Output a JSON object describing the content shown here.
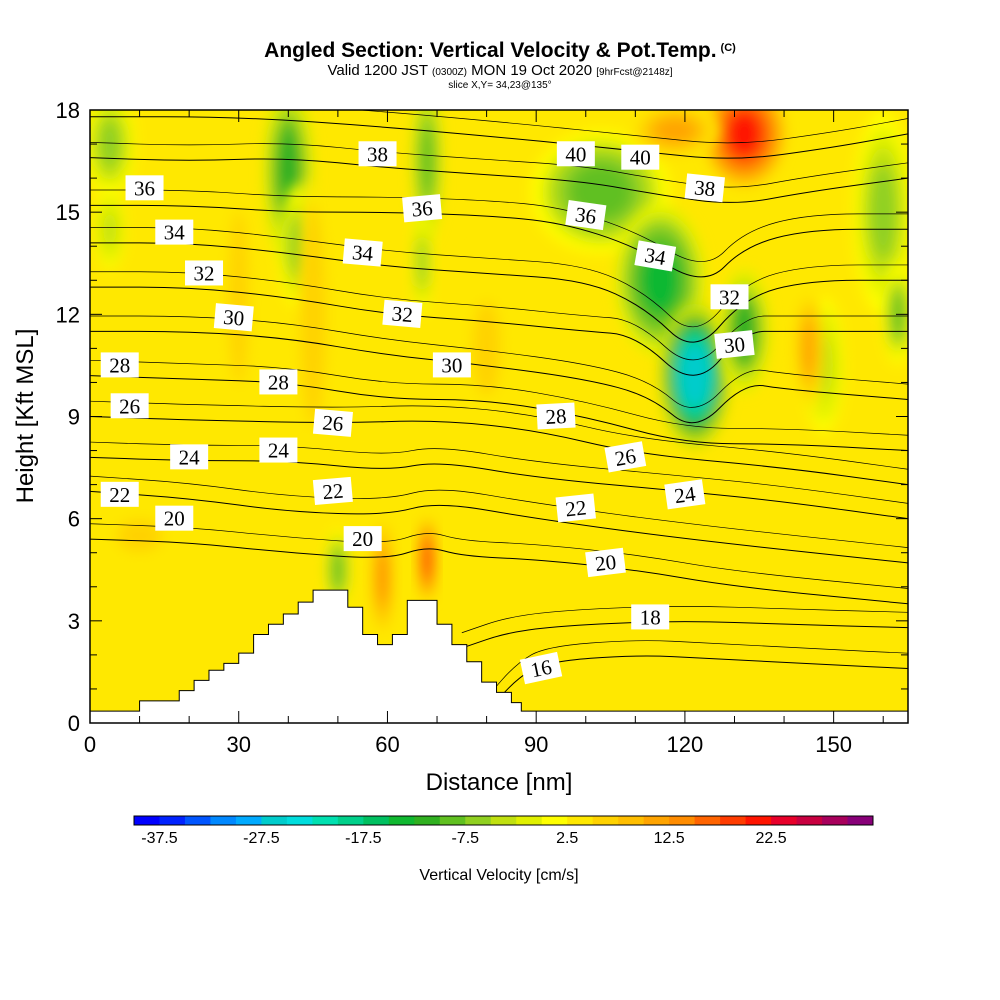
{
  "title": "Angled Section: Vertical Velocity & Pot.Temp.",
  "title_suffix": "(C)",
  "subtitle_valid": "Valid 1200 JST",
  "subtitle_z": "(0300Z)",
  "subtitle_date": "MON 19 Oct 2020",
  "subtitle_fcst": "[9hrFcst@2148z]",
  "slice_label": "slice X,Y= 34,23@135°",
  "chart_data": {
    "type": "heatmap",
    "title": "Angled Section: Vertical Velocity & Pot.Temp.",
    "xlabel": "Distance [nm]",
    "ylabel": "Height [Kft MSL]",
    "xlim": [
      0,
      165
    ],
    "ylim": [
      0,
      18
    ],
    "x_ticks": [
      "0",
      "30",
      "60",
      "90",
      "120",
      "150"
    ],
    "x_tick_values": [
      0,
      30,
      60,
      90,
      120,
      150
    ],
    "y_ticks": [
      "0",
      "3",
      "6",
      "9",
      "12",
      "15",
      "18"
    ],
    "y_tick_values": [
      0,
      3,
      6,
      9,
      12,
      15,
      18
    ],
    "colorbar": {
      "label": "Vertical Velocity [cm/s]",
      "tick_labels": [
        "-37.5",
        "-27.5",
        "-17.5",
        "-7.5",
        "2.5",
        "12.5",
        "22.5"
      ],
      "bins": [
        -40,
        -37.5,
        -35,
        -32.5,
        -30,
        -27.5,
        -25,
        -22.5,
        -20,
        -17.5,
        -15,
        -12.5,
        -10,
        -7.5,
        -5,
        -2.5,
        0,
        2.5,
        5,
        7.5,
        10,
        12.5,
        15,
        17.5,
        20,
        22.5,
        25,
        27.5,
        30,
        32.5
      ],
      "colors": [
        "#0000ff",
        "#0022ff",
        "#0055ff",
        "#0088ff",
        "#00aaff",
        "#00cccc",
        "#00dddd",
        "#00e0b0",
        "#00d08a",
        "#00c060",
        "#10b830",
        "#30b020",
        "#60c020",
        "#90d020",
        "#c0e010",
        "#e0f000",
        "#ffff00",
        "#ffe800",
        "#ffd200",
        "#ffbe00",
        "#ffa400",
        "#ff8c00",
        "#ff6400",
        "#ff3c00",
        "#ff1400",
        "#e8002a",
        "#c80040",
        "#a8005c",
        "#880078"
      ]
    },
    "features": [
      {
        "x": 40,
        "y": 16.2,
        "rx": 5,
        "ry": 2.6,
        "w": -12
      },
      {
        "x": 42,
        "y": 14.0,
        "rx": 4,
        "ry": 1.8,
        "w": -6
      },
      {
        "x": 68,
        "y": 16.5,
        "rx": 3,
        "ry": 2.3,
        "w": -10
      },
      {
        "x": 67,
        "y": 13.5,
        "rx": 2,
        "ry": 1.5,
        "w": -6
      },
      {
        "x": 4,
        "y": 17.0,
        "rx": 5,
        "ry": 1.6,
        "w": -7
      },
      {
        "x": 4,
        "y": 14.5,
        "rx": 3,
        "ry": 1.2,
        "w": -4
      },
      {
        "x": 103,
        "y": 15.6,
        "rx": 14,
        "ry": 1.8,
        "w": -9
      },
      {
        "x": 115,
        "y": 13.0,
        "rx": 9,
        "ry": 2.2,
        "w": -14
      },
      {
        "x": 122,
        "y": 10.2,
        "rx": 7,
        "ry": 2.1,
        "w": -26
      },
      {
        "x": 132,
        "y": 11.5,
        "rx": 5,
        "ry": 1.8,
        "w": -12
      },
      {
        "x": 160,
        "y": 15.0,
        "rx": 6,
        "ry": 3.0,
        "w": -6
      },
      {
        "x": 163,
        "y": 12.0,
        "rx": 3,
        "ry": 1.5,
        "w": -8
      },
      {
        "x": 148,
        "y": 10.5,
        "rx": 4,
        "ry": 2.0,
        "w": -4
      },
      {
        "x": 50,
        "y": 4.5,
        "rx": 2.5,
        "ry": 1.2,
        "w": -9
      },
      {
        "x": 132,
        "y": 17.3,
        "rx": 8,
        "ry": 1.5,
        "w": 22
      },
      {
        "x": 118,
        "y": 17.4,
        "rx": 9,
        "ry": 0.8,
        "w": 10
      },
      {
        "x": 68,
        "y": 4.8,
        "rx": 1.6,
        "ry": 1.2,
        "w": 22
      },
      {
        "x": 59,
        "y": 4.3,
        "rx": 2,
        "ry": 1.6,
        "w": 14
      },
      {
        "x": 45,
        "y": 12.0,
        "rx": 3,
        "ry": 4.0,
        "w": 7
      },
      {
        "x": 30,
        "y": 12.5,
        "rx": 3,
        "ry": 4.0,
        "w": 6
      },
      {
        "x": 145,
        "y": 11.0,
        "rx": 3,
        "ry": 1.8,
        "w": 10
      },
      {
        "x": 10,
        "y": 5.5,
        "rx": 10,
        "ry": 1.0,
        "w": 5
      },
      {
        "x": 80,
        "y": 11.0,
        "rx": 6,
        "ry": 3.0,
        "w": 5
      },
      {
        "x": 130,
        "y": 6.0,
        "rx": 25,
        "ry": 1.5,
        "w": 4
      },
      {
        "x": 55,
        "y": 9.5,
        "rx": 5,
        "ry": 2.0,
        "w": 4
      }
    ],
    "isentropes": [
      {
        "value": "16",
        "label": "16",
        "pts": [
          [
            80,
            0.3
          ],
          [
            86,
            1.3
          ],
          [
            92,
            1.8
          ],
          [
            110,
            2.0
          ],
          [
            125,
            1.9
          ],
          [
            150,
            1.7
          ],
          [
            165,
            1.6
          ]
        ],
        "label_at": [
          91,
          1.6
        ],
        "angle": -12
      },
      {
        "value": "18",
        "label": "18",
        "pts": [
          [
            75,
            2.2
          ],
          [
            85,
            2.7
          ],
          [
            100,
            2.9
          ],
          [
            120,
            3.0
          ],
          [
            140,
            2.9
          ],
          [
            165,
            2.8
          ]
        ],
        "label_at": [
          113,
          3.1
        ],
        "angle": 0
      },
      {
        "value": "20",
        "label": "20",
        "pts": [
          [
            0,
            5.4
          ],
          [
            20,
            5.3
          ],
          [
            40,
            5.0
          ],
          [
            60,
            4.8
          ],
          [
            68,
            5.2
          ],
          [
            75,
            4.9
          ],
          [
            90,
            4.8
          ],
          [
            110,
            4.5
          ],
          [
            130,
            4.0
          ],
          [
            165,
            3.5
          ]
        ],
        "label_at": [
          104,
          4.7
        ],
        "angle": -7
      },
      {
        "value": "22",
        "label": "22",
        "pts": [
          [
            0,
            6.8
          ],
          [
            20,
            6.6
          ],
          [
            40,
            6.2
          ],
          [
            60,
            6.1
          ],
          [
            70,
            6.5
          ],
          [
            90,
            6.0
          ],
          [
            120,
            5.4
          ],
          [
            165,
            4.7
          ]
        ],
        "label_at": [
          98,
          6.3
        ],
        "angle": -6
      },
      {
        "value": "24",
        "label": "24",
        "pts": [
          [
            0,
            7.8
          ],
          [
            20,
            7.7
          ],
          [
            40,
            7.7
          ],
          [
            60,
            7.4
          ],
          [
            70,
            7.7
          ],
          [
            90,
            7.2
          ],
          [
            120,
            6.8
          ],
          [
            140,
            6.5
          ],
          [
            165,
            6.0
          ]
        ],
        "label_at": [
          120,
          6.7
        ],
        "angle": -8
      },
      {
        "value": "26",
        "label": "26",
        "pts": [
          [
            0,
            9.0
          ],
          [
            20,
            8.9
          ],
          [
            50,
            8.8
          ],
          [
            70,
            8.9
          ],
          [
            90,
            8.6
          ],
          [
            110,
            7.9
          ],
          [
            140,
            7.5
          ],
          [
            165,
            7.0
          ]
        ],
        "label_at": [
          108,
          7.8
        ],
        "angle": -10
      },
      {
        "value": "28",
        "label": "28",
        "pts": [
          [
            0,
            10.2
          ],
          [
            20,
            10.1
          ],
          [
            40,
            10.0
          ],
          [
            60,
            9.5
          ],
          [
            80,
            9.5
          ],
          [
            100,
            9.0
          ],
          [
            120,
            8.2
          ],
          [
            140,
            8.2
          ],
          [
            165,
            8.0
          ]
        ],
        "label_at": [
          94,
          9.0
        ],
        "angle": -3
      },
      {
        "value": "30",
        "label": "30",
        "pts": [
          [
            0,
            11.5
          ],
          [
            20,
            11.5
          ],
          [
            40,
            11.3
          ],
          [
            60,
            10.8
          ],
          [
            80,
            10.5
          ],
          [
            100,
            10.1
          ],
          [
            113,
            9.6
          ],
          [
            122,
            8.5
          ],
          [
            132,
            10.0
          ],
          [
            140,
            9.8
          ],
          [
            165,
            9.5
          ]
        ],
        "label_at": [
          130,
          11.1
        ],
        "angle": -6
      },
      {
        "value": "32",
        "label": "32",
        "pts": [
          [
            0,
            12.8
          ],
          [
            20,
            12.8
          ],
          [
            40,
            12.5
          ],
          [
            60,
            12.0
          ],
          [
            80,
            11.8
          ],
          [
            100,
            11.5
          ],
          [
            110,
            11.4
          ],
          [
            122,
            9.8
          ],
          [
            132,
            11.5
          ],
          [
            140,
            11.5
          ],
          [
            165,
            11.5
          ]
        ],
        "label_at": [
          129,
          12.5
        ],
        "angle": 0
      },
      {
        "value": "34",
        "label": "34",
        "pts": [
          [
            0,
            14.1
          ],
          [
            20,
            14.1
          ],
          [
            40,
            13.8
          ],
          [
            60,
            13.4
          ],
          [
            80,
            13.2
          ],
          [
            100,
            13.0
          ],
          [
            112,
            12.2
          ],
          [
            122,
            10.8
          ],
          [
            132,
            12.5
          ],
          [
            145,
            13.0
          ],
          [
            165,
            13.0
          ]
        ],
        "label_at": [
          114,
          13.7
        ],
        "angle": 10
      },
      {
        "value": "36",
        "label": "36",
        "pts": [
          [
            0,
            15.2
          ],
          [
            20,
            15.2
          ],
          [
            40,
            15.0
          ],
          [
            60,
            15.0
          ],
          [
            80,
            14.9
          ],
          [
            95,
            14.7
          ],
          [
            110,
            14.0
          ],
          [
            124,
            12.8
          ],
          [
            132,
            14.0
          ],
          [
            145,
            14.5
          ],
          [
            165,
            14.5
          ]
        ],
        "label_at": [
          100,
          14.9
        ],
        "angle": 8
      },
      {
        "value": "38",
        "label": "38",
        "pts": [
          [
            0,
            16.6
          ],
          [
            20,
            16.5
          ],
          [
            40,
            16.6
          ],
          [
            60,
            16.3
          ],
          [
            80,
            16.1
          ],
          [
            100,
            15.9
          ],
          [
            115,
            15.5
          ],
          [
            130,
            15.2
          ],
          [
            145,
            15.6
          ],
          [
            165,
            16.0
          ]
        ],
        "label_at": [
          124,
          15.7
        ],
        "angle": 6
      },
      {
        "value": "40",
        "label": "40",
        "pts": [
          [
            0,
            17.8
          ],
          [
            30,
            17.8
          ],
          [
            60,
            17.5
          ],
          [
            90,
            17.1
          ],
          [
            110,
            16.8
          ],
          [
            130,
            16.5
          ],
          [
            150,
            16.9
          ],
          [
            165,
            17.3
          ]
        ],
        "label_at": [
          111,
          16.6
        ],
        "angle": 0
      }
    ],
    "contour_labels": [
      {
        "text": "36",
        "x": 11,
        "y": 15.7,
        "angle": 0
      },
      {
        "text": "34",
        "x": 17,
        "y": 14.4,
        "angle": 0
      },
      {
        "text": "32",
        "x": 23,
        "y": 13.2,
        "angle": 0
      },
      {
        "text": "30",
        "x": 29,
        "y": 11.9,
        "angle": 5
      },
      {
        "text": "28",
        "x": 6,
        "y": 10.5,
        "angle": 0
      },
      {
        "text": "26",
        "x": 8,
        "y": 9.3,
        "angle": 0
      },
      {
        "text": "24",
        "x": 20,
        "y": 7.8,
        "angle": 0
      },
      {
        "text": "22",
        "x": 6,
        "y": 6.7,
        "angle": 0
      },
      {
        "text": "20",
        "x": 17,
        "y": 6.0,
        "angle": 0
      },
      {
        "text": "28",
        "x": 38,
        "y": 10.0,
        "angle": 0
      },
      {
        "text": "24",
        "x": 38,
        "y": 8.0,
        "angle": 0
      },
      {
        "text": "26",
        "x": 49,
        "y": 8.8,
        "angle": 5
      },
      {
        "text": "22",
        "x": 49,
        "y": 6.8,
        "angle": -5
      },
      {
        "text": "20",
        "x": 55,
        "y": 5.4,
        "angle": 0
      },
      {
        "text": "34",
        "x": 55,
        "y": 13.8,
        "angle": 5
      },
      {
        "text": "32",
        "x": 63,
        "y": 12.0,
        "angle": 5
      },
      {
        "text": "38",
        "x": 58,
        "y": 16.7,
        "angle": 0
      },
      {
        "text": "36",
        "x": 67,
        "y": 15.1,
        "angle": -5
      },
      {
        "text": "30",
        "x": 73,
        "y": 10.5,
        "angle": 0
      },
      {
        "text": "40",
        "x": 98,
        "y": 16.7,
        "angle": 0
      }
    ],
    "terrain": [
      [
        0,
        0.35
      ],
      [
        10,
        0.35
      ],
      [
        10,
        0.65
      ],
      [
        18,
        0.65
      ],
      [
        18,
        0.95
      ],
      [
        21,
        0.95
      ],
      [
        21,
        1.25
      ],
      [
        24,
        1.25
      ],
      [
        24,
        1.55
      ],
      [
        27,
        1.55
      ],
      [
        27,
        1.75
      ],
      [
        30,
        1.75
      ],
      [
        30,
        2.05
      ],
      [
        33,
        2.05
      ],
      [
        33,
        2.6
      ],
      [
        36,
        2.6
      ],
      [
        36,
        2.9
      ],
      [
        39,
        2.9
      ],
      [
        39,
        3.2
      ],
      [
        42,
        3.2
      ],
      [
        42,
        3.55
      ],
      [
        45,
        3.55
      ],
      [
        45,
        3.9
      ],
      [
        52,
        3.9
      ],
      [
        52,
        3.4
      ],
      [
        55,
        3.4
      ],
      [
        55,
        2.6
      ],
      [
        58,
        2.6
      ],
      [
        58,
        2.3
      ],
      [
        61,
        2.3
      ],
      [
        61,
        2.6
      ],
      [
        64,
        2.6
      ],
      [
        64,
        3.6
      ],
      [
        70,
        3.6
      ],
      [
        70,
        2.9
      ],
      [
        73,
        2.9
      ],
      [
        73,
        2.3
      ],
      [
        76,
        2.3
      ],
      [
        76,
        1.8
      ],
      [
        79,
        1.8
      ],
      [
        79,
        1.2
      ],
      [
        82,
        1.2
      ],
      [
        82,
        0.9
      ],
      [
        85,
        0.9
      ],
      [
        85,
        0.6
      ],
      [
        87,
        0.6
      ],
      [
        87,
        0.35
      ],
      [
        165,
        0.35
      ]
    ]
  }
}
